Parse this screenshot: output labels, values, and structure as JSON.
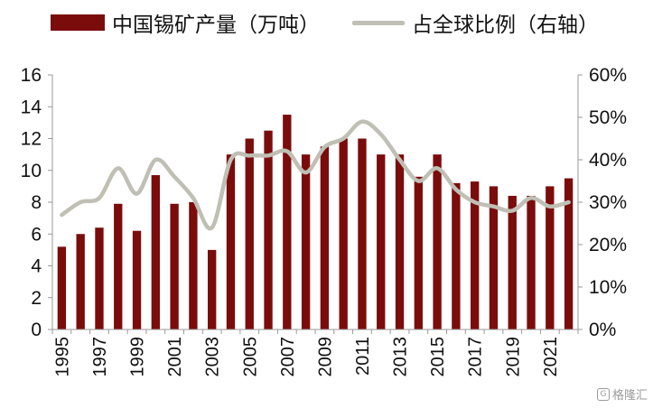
{
  "legend": {
    "bar_label": "中国锡矿产量（万吨）",
    "line_label": "占全球比例（右轴）"
  },
  "watermark": {
    "text": "格隆汇",
    "icon": "g-logo-icon"
  },
  "colors": {
    "bar": "#7b0c0c",
    "line": "#c0bfb4",
    "axis": "#999999"
  },
  "chart_data": {
    "type": "bar",
    "categories": [
      "1995",
      "1996",
      "1997",
      "1998",
      "1999",
      "2000",
      "2001",
      "2002",
      "2003",
      "2004",
      "2005",
      "2006",
      "2007",
      "2008",
      "2009",
      "2010",
      "2011",
      "2012",
      "2013",
      "2014",
      "2015",
      "2016",
      "2017",
      "2018",
      "2019",
      "2020",
      "2021",
      "2022"
    ],
    "x_tick_labels": [
      "1995",
      "1997",
      "1999",
      "2001",
      "2003",
      "2005",
      "2007",
      "2009",
      "2011",
      "2013",
      "2015",
      "2017",
      "2019",
      "2021"
    ],
    "series": [
      {
        "name": "中国锡矿产量（万吨）",
        "type": "bar",
        "axis": "left",
        "values": [
          5.2,
          6.0,
          6.4,
          7.9,
          6.2,
          9.7,
          7.9,
          8.0,
          5.0,
          11.0,
          12.0,
          12.5,
          13.5,
          11.0,
          11.5,
          12.0,
          12.0,
          11.0,
          11.0,
          9.6,
          11.0,
          9.2,
          9.3,
          9.0,
          8.4,
          8.4,
          9.0,
          9.5
        ]
      },
      {
        "name": "占全球比例（右轴）",
        "type": "line",
        "axis": "right",
        "values": [
          27,
          30,
          31,
          38,
          32,
          40,
          36,
          31,
          24,
          40,
          41,
          41,
          42,
          37,
          43,
          45,
          49,
          46,
          40,
          35,
          38,
          33,
          30,
          29,
          28,
          31,
          29,
          30
        ]
      }
    ],
    "y_left": {
      "min": 0,
      "max": 16,
      "ticks": [
        "0",
        "2",
        "4",
        "6",
        "8",
        "10",
        "12",
        "14",
        "16"
      ]
    },
    "y_right": {
      "min": 0,
      "max": 60,
      "ticks": [
        "0%",
        "10%",
        "20%",
        "30%",
        "40%",
        "50%",
        "60%"
      ]
    },
    "grid": false,
    "legend_position": "top"
  }
}
